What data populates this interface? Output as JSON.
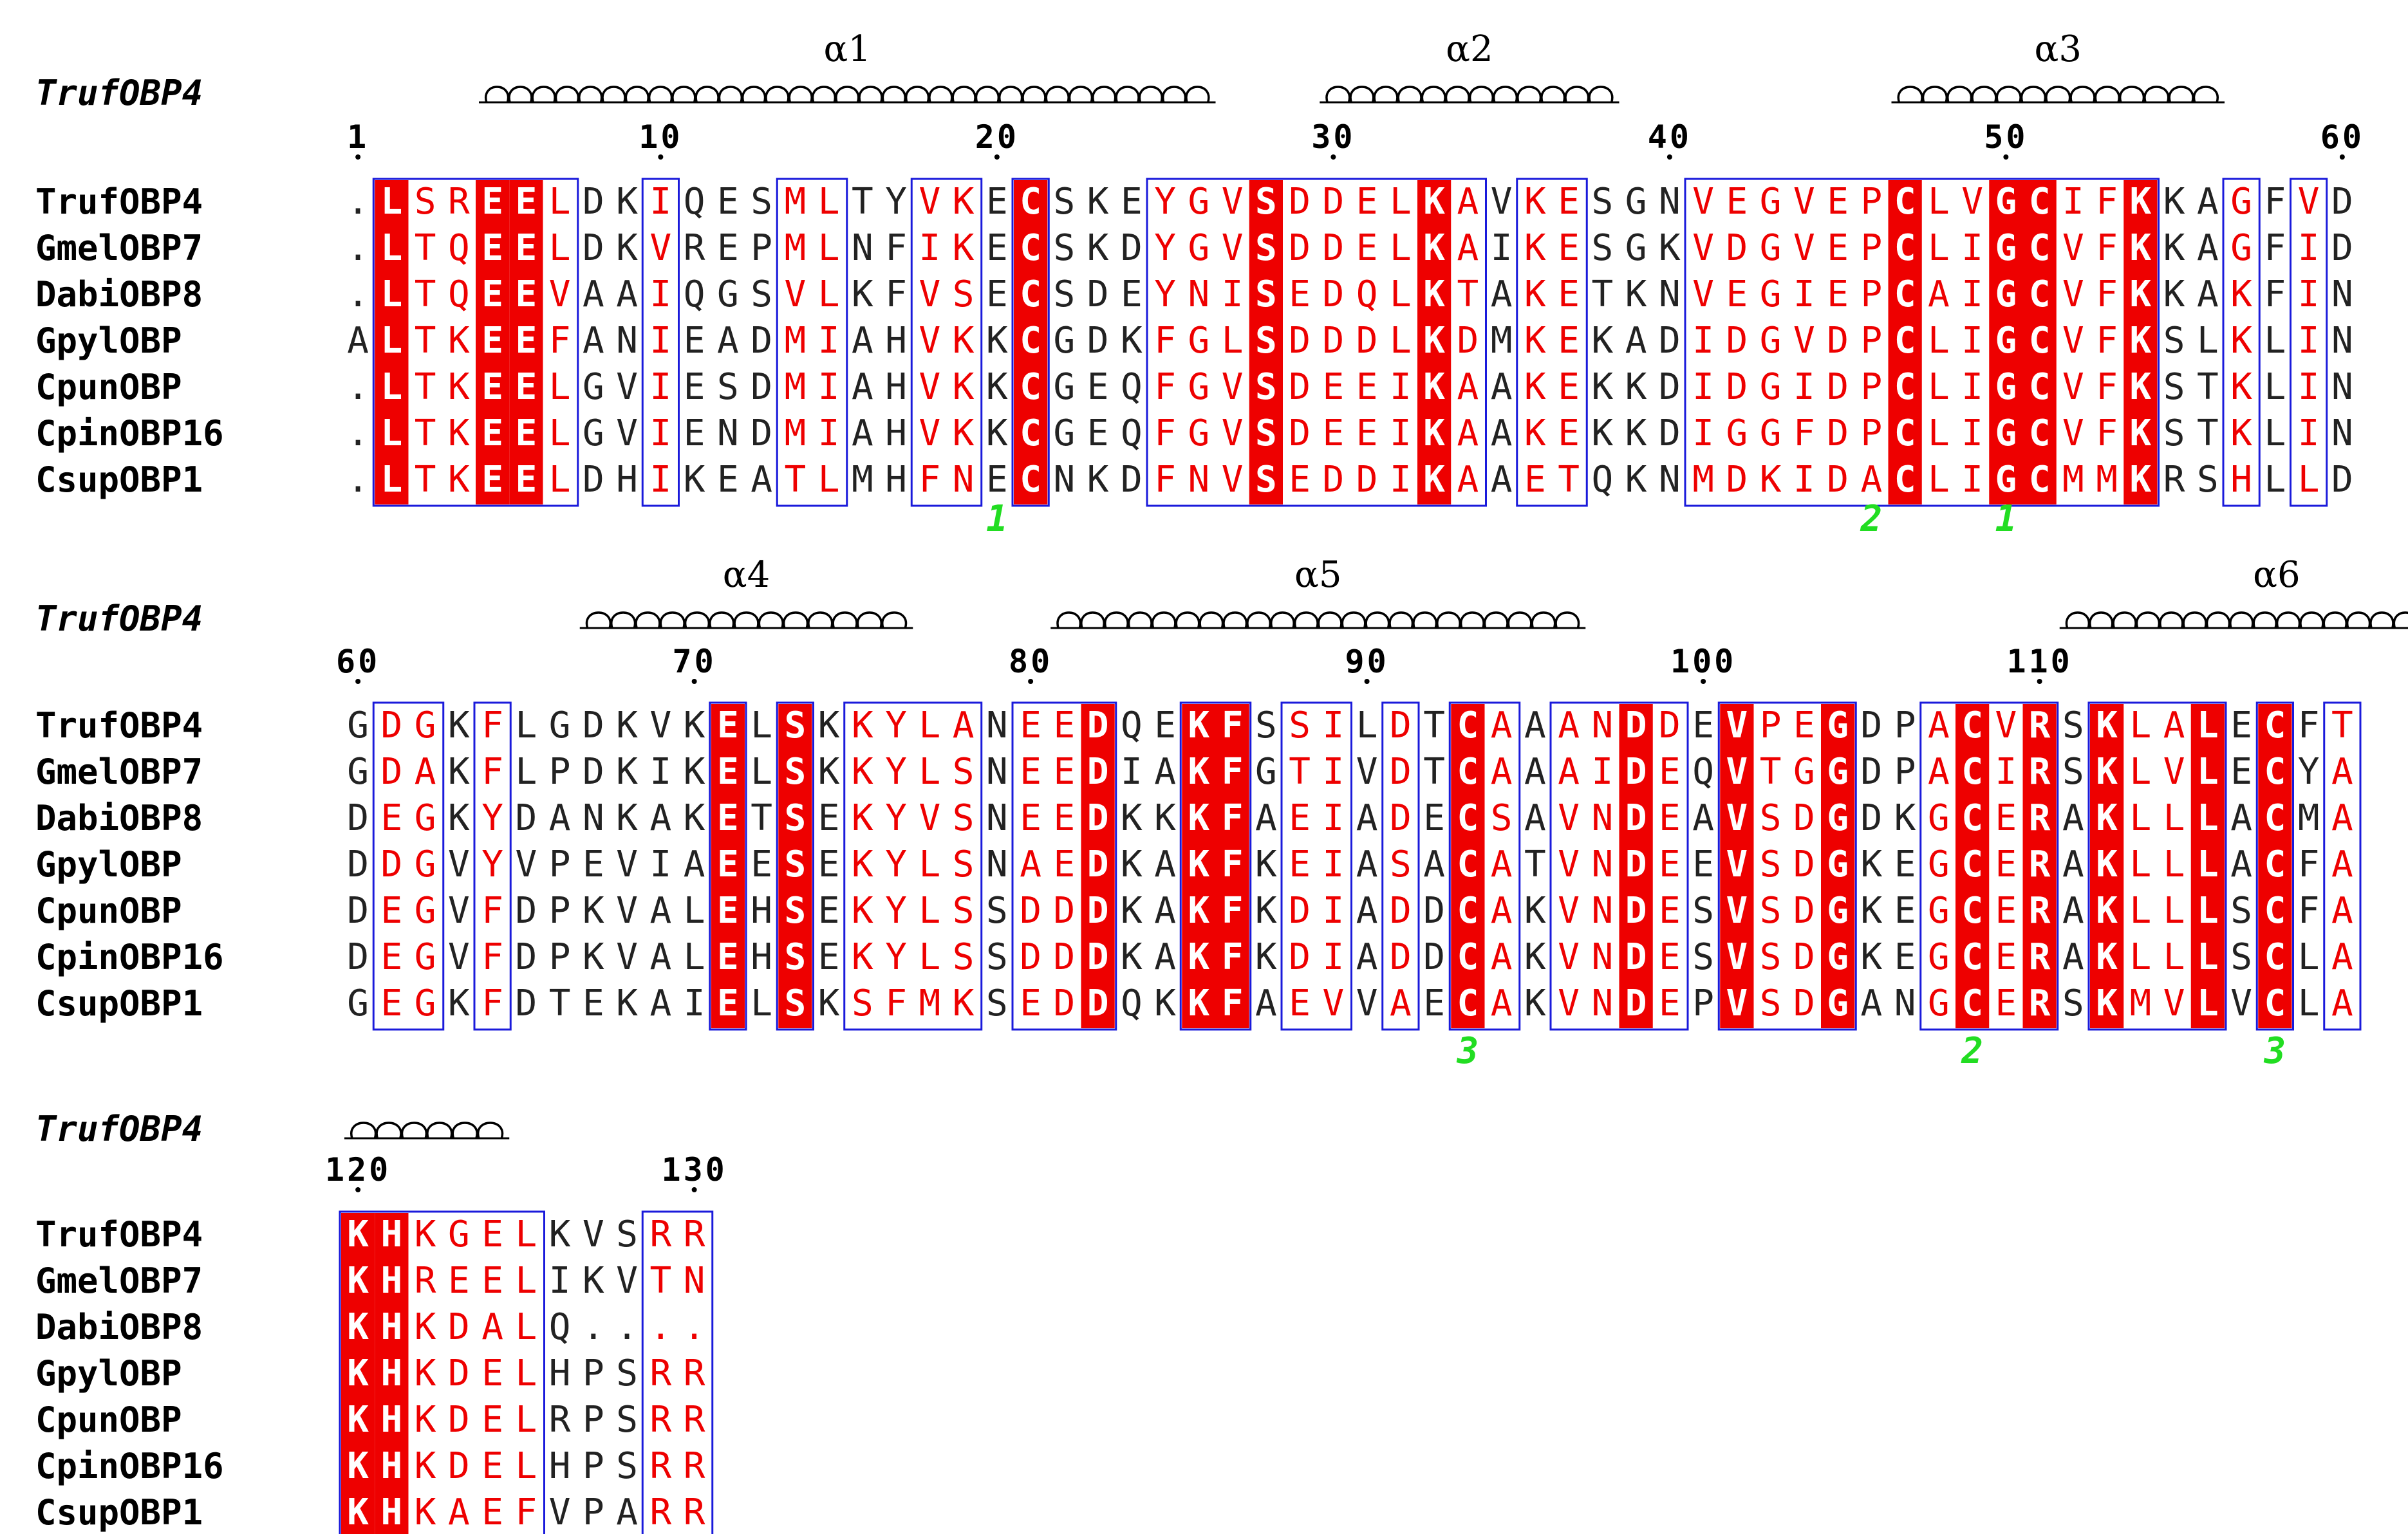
{
  "colors": {
    "identical_bg": "#ee0000",
    "identical_fg": "#ffffff",
    "similar_fg": "#ee0000",
    "other_fg": "#222222",
    "box": "#1a1adb",
    "cys_pair_label": "#22dd22",
    "helix": "#000000"
  },
  "reference_label": "TrufOBP4",
  "blocks": [
    {
      "start_number": 1,
      "helices": [
        {
          "label": "α1",
          "from": 4,
          "to": 25
        },
        {
          "label": "α2",
          "from": 29,
          "to": 37
        },
        {
          "label": "α3",
          "from": 46,
          "to": 55
        }
      ],
      "sequences": [
        {
          "name": "TrufOBP4",
          "seq": ".LSREELDKIQESMLTYVKECSKEYGVSDDELKAVKESGNVEGVEPCLVGCIFKKAGFVD"
        },
        {
          "name": "GmelOBP7",
          "seq": ".LTQEELDKVREPMLNFIKECSKDYGVSDDELKAIKESGKVDGVEPCLIGCVFKKAGFID"
        },
        {
          "name": "DabiOBP8",
          "seq": ".LTQEEVAAIQGSVLKFVSECSDEYNISEDQLKTAKETKNVEGIEPCAIGCVFKKAKFIN"
        },
        {
          "name": "GpylOBP",
          "seq": "ALTKEEFANIEADMIAHVKKCGDKFGLSDDDLKDMKEKADIDGVDPCLIGCVFKSLKLIN"
        },
        {
          "name": "CpunOBP",
          "seq": ".LTKEELGVIESDMIAHVKKCGEQFGVSDEEIKAAKEKKDIDGIDPCLIGCVFKSTKLIN"
        },
        {
          "name": "CpinOBP16",
          "seq": ".LTKEELGVIENDMIAHVKKCGEQFGVSDEEIKAAKEKKDIGGFDPCLIGCVFKSTKLIN"
        },
        {
          "name": "CsupOBP1",
          "seq": ".LTKEELDHIKEATLMHFNECNKDFNVSEDDIKAAETQKNMDKIDACLIGCMMKRSHLLD"
        }
      ],
      "cys_pairs": [
        {
          "col": 20,
          "label": "1"
        },
        {
          "col": 46,
          "label": "2"
        },
        {
          "col": 50,
          "label": "1"
        }
      ]
    },
    {
      "start_number": 60,
      "helices": [
        {
          "label": "α4",
          "from": 7,
          "to": 16
        },
        {
          "label": "α5",
          "from": 21,
          "to": 36
        },
        {
          "label": "α6",
          "from": 51,
          "to": 63
        }
      ],
      "sequences": [
        {
          "name": "TrufOBP4",
          "seq": "GDGKFLGDKVKELSKKYLANEEDQEKFSSILDTCAAANDDEVPEGDPACVRSKLALECFT"
        },
        {
          "name": "GmelOBP7",
          "seq": "GDAKFLPDKIKELSKKYLSNEEDIAKFGTIVDTCAAAIDEQVTGGDPACIRSKLVLECYA"
        },
        {
          "name": "DabiOBP8",
          "seq": "DEGKYDANKAKETSEKYVSNEEDKKKFAEIADECSAVNDEAVSDGDKGCERAKLLLACMA"
        },
        {
          "name": "GpylOBP",
          "seq": "DDGVYVPEVIAEESEKYLSNAEDKAKFKEIASACATVNDEEVSDGKEGCERAKLLLACFA"
        },
        {
          "name": "CpunOBP",
          "seq": "DEGVFDPKVALEHSEKYLSSDDDKAKFKDIADDCAKVNDESVSDGKEGCERAKLLLSCFA"
        },
        {
          "name": "CpinOBP16",
          "seq": "DEGVFDPKVALEHSEKYLSSDDDKAKFKDIADDCAKVNDESVSDGKEGCERAKLLLSCLA"
        },
        {
          "name": "CsupOBP1",
          "seq": "GEGKFDTEKAIELSKSFMKSEDDQKKFAEVVAECAKVNDEPVSDGANGCERSKMVLVCLA"
        }
      ],
      "cys_pairs": [
        {
          "col": 34,
          "label": "3"
        },
        {
          "col": 49,
          "label": "2"
        },
        {
          "col": 58,
          "label": "3"
        }
      ]
    },
    {
      "start_number": 120,
      "helices": [
        {
          "label": "",
          "from": 0,
          "to": 4
        }
      ],
      "sequences": [
        {
          "name": "TrufOBP4",
          "seq": "KHKGELKVSRR"
        },
        {
          "name": "GmelOBP7",
          "seq": "KHREELIKVTN"
        },
        {
          "name": "DabiOBP8",
          "seq": "KHKDALQ...."
        },
        {
          "name": "GpylOBP",
          "seq": "KHKDELHPSRR"
        },
        {
          "name": "CpunOBP",
          "seq": "KHKDELRPSRR"
        },
        {
          "name": "CpinOBP16",
          "seq": "KHKDELHPSRR"
        },
        {
          "name": "CsupOBP1",
          "seq": "KHKAEFVPARR"
        }
      ],
      "cys_pairs": []
    }
  ]
}
